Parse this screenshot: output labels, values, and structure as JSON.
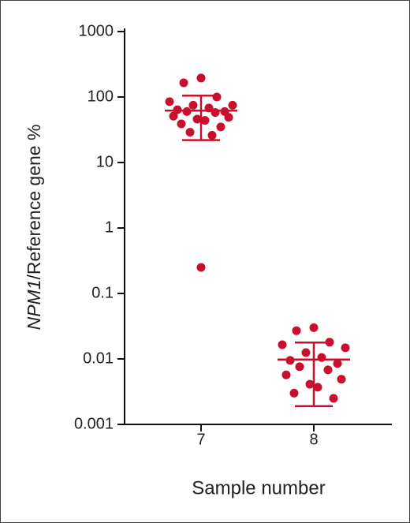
{
  "chart_data": {
    "type": "dot",
    "ylabel_italic": "NPM1",
    "ylabel": "/Reference gene %",
    "xlabel": "Sample number",
    "log_y": true,
    "ylim": [
      0.001,
      1000
    ],
    "yticks": [
      1000,
      100,
      10,
      1,
      0.1,
      0.01,
      0.001
    ],
    "color": "#c8102e",
    "categories": [
      "7",
      "8"
    ],
    "groups": [
      {
        "values": [
          195,
          165,
          100,
          85,
          75,
          75,
          68,
          64,
          60,
          60,
          58,
          51,
          49,
          46,
          44,
          39,
          35,
          29,
          26,
          0.25
        ],
        "mean": 62,
        "sd_upper": 105,
        "sd_lower": 22
      },
      {
        "values": [
          0.03,
          0.027,
          0.018,
          0.0165,
          0.0148,
          0.0125,
          0.0105,
          0.0095,
          0.0085,
          0.0076,
          0.0068,
          0.0057,
          0.0049,
          0.0041,
          0.0037,
          0.003,
          0.0025
        ],
        "mean": 0.0098,
        "sd_upper": 0.0178,
        "sd_lower": 0.0019
      }
    ]
  }
}
